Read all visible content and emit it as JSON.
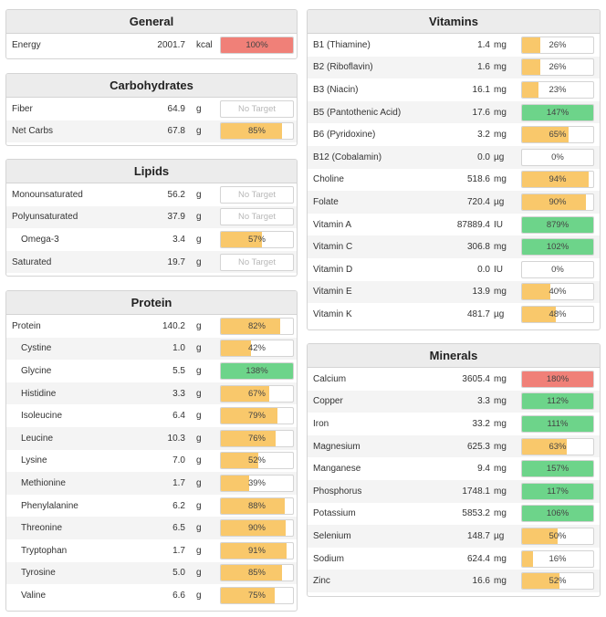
{
  "colors": {
    "below_target": "#f9c86b",
    "on_target": "#6dd48a",
    "over_target": "#f08078"
  },
  "general": {
    "title": "General",
    "rows": [
      {
        "name": "Energy",
        "amount": "2001.7",
        "unit": "kcal",
        "pct_label": "100%",
        "fill": 1.0,
        "status": "over"
      }
    ]
  },
  "carbohydrates": {
    "title": "Carbohydrates",
    "rows": [
      {
        "name": "Fiber",
        "amount": "64.9",
        "unit": "g",
        "pct_label": "No Target",
        "fill": 0,
        "status": "none"
      },
      {
        "name": "Net Carbs",
        "amount": "67.8",
        "unit": "g",
        "pct_label": "85%",
        "fill": 0.85,
        "status": "below"
      }
    ]
  },
  "lipids": {
    "title": "Lipids",
    "rows": [
      {
        "name": "Monounsaturated",
        "amount": "56.2",
        "unit": "g",
        "pct_label": "No Target",
        "fill": 0,
        "status": "none"
      },
      {
        "name": "Polyunsaturated",
        "amount": "37.9",
        "unit": "g",
        "pct_label": "No Target",
        "fill": 0,
        "status": "none"
      },
      {
        "name": "Omega-3",
        "amount": "3.4",
        "unit": "g",
        "pct_label": "57%",
        "fill": 0.57,
        "status": "below",
        "indent": true
      },
      {
        "name": "Saturated",
        "amount": "19.7",
        "unit": "g",
        "pct_label": "No Target",
        "fill": 0,
        "status": "none"
      }
    ]
  },
  "protein": {
    "title": "Protein",
    "rows": [
      {
        "name": "Protein",
        "amount": "140.2",
        "unit": "g",
        "pct_label": "82%",
        "fill": 0.82,
        "status": "below"
      },
      {
        "name": "Cystine",
        "amount": "1.0",
        "unit": "g",
        "pct_label": "42%",
        "fill": 0.42,
        "status": "below",
        "indent": true
      },
      {
        "name": "Glycine",
        "amount": "5.5",
        "unit": "g",
        "pct_label": "138%",
        "fill": 1.0,
        "status": "on",
        "indent": true
      },
      {
        "name": "Histidine",
        "amount": "3.3",
        "unit": "g",
        "pct_label": "67%",
        "fill": 0.67,
        "status": "below",
        "indent": true
      },
      {
        "name": "Isoleucine",
        "amount": "6.4",
        "unit": "g",
        "pct_label": "79%",
        "fill": 0.79,
        "status": "below",
        "indent": true
      },
      {
        "name": "Leucine",
        "amount": "10.3",
        "unit": "g",
        "pct_label": "76%",
        "fill": 0.76,
        "status": "below",
        "indent": true
      },
      {
        "name": "Lysine",
        "amount": "7.0",
        "unit": "g",
        "pct_label": "52%",
        "fill": 0.52,
        "status": "below",
        "indent": true
      },
      {
        "name": "Methionine",
        "amount": "1.7",
        "unit": "g",
        "pct_label": "39%",
        "fill": 0.39,
        "status": "below",
        "indent": true
      },
      {
        "name": "Phenylalanine",
        "amount": "6.2",
        "unit": "g",
        "pct_label": "88%",
        "fill": 0.88,
        "status": "below",
        "indent": true
      },
      {
        "name": "Threonine",
        "amount": "6.5",
        "unit": "g",
        "pct_label": "90%",
        "fill": 0.9,
        "status": "below",
        "indent": true
      },
      {
        "name": "Tryptophan",
        "amount": "1.7",
        "unit": "g",
        "pct_label": "91%",
        "fill": 0.91,
        "status": "below",
        "indent": true
      },
      {
        "name": "Tyrosine",
        "amount": "5.0",
        "unit": "g",
        "pct_label": "85%",
        "fill": 0.85,
        "status": "below",
        "indent": true
      },
      {
        "name": "Valine",
        "amount": "6.6",
        "unit": "g",
        "pct_label": "75%",
        "fill": 0.75,
        "status": "below",
        "indent": true
      }
    ]
  },
  "vitamins": {
    "title": "Vitamins",
    "rows": [
      {
        "name": "B1 (Thiamine)",
        "amount": "1.4",
        "unit": "mg",
        "pct_label": "26%",
        "fill": 0.26,
        "status": "below"
      },
      {
        "name": "B2 (Riboflavin)",
        "amount": "1.6",
        "unit": "mg",
        "pct_label": "26%",
        "fill": 0.26,
        "status": "below"
      },
      {
        "name": "B3 (Niacin)",
        "amount": "16.1",
        "unit": "mg",
        "pct_label": "23%",
        "fill": 0.23,
        "status": "below"
      },
      {
        "name": "B5 (Pantothenic Acid)",
        "amount": "17.6",
        "unit": "mg",
        "pct_label": "147%",
        "fill": 1.0,
        "status": "on"
      },
      {
        "name": "B6 (Pyridoxine)",
        "amount": "3.2",
        "unit": "mg",
        "pct_label": "65%",
        "fill": 0.65,
        "status": "below"
      },
      {
        "name": "B12 (Cobalamin)",
        "amount": "0.0",
        "unit": "µg",
        "pct_label": "0%",
        "fill": 0,
        "status": "below"
      },
      {
        "name": "Choline",
        "amount": "518.6",
        "unit": "mg",
        "pct_label": "94%",
        "fill": 0.94,
        "status": "below"
      },
      {
        "name": "Folate",
        "amount": "720.4",
        "unit": "µg",
        "pct_label": "90%",
        "fill": 0.9,
        "status": "below"
      },
      {
        "name": "Vitamin A",
        "amount": "87889.4",
        "unit": "IU",
        "pct_label": "879%",
        "fill": 1.0,
        "status": "on"
      },
      {
        "name": "Vitamin C",
        "amount": "306.8",
        "unit": "mg",
        "pct_label": "102%",
        "fill": 1.0,
        "status": "on"
      },
      {
        "name": "Vitamin D",
        "amount": "0.0",
        "unit": "IU",
        "pct_label": "0%",
        "fill": 0,
        "status": "below"
      },
      {
        "name": "Vitamin E",
        "amount": "13.9",
        "unit": "mg",
        "pct_label": "40%",
        "fill": 0.4,
        "status": "below"
      },
      {
        "name": "Vitamin K",
        "amount": "481.7",
        "unit": "µg",
        "pct_label": "48%",
        "fill": 0.48,
        "status": "below"
      }
    ]
  },
  "minerals": {
    "title": "Minerals",
    "rows": [
      {
        "name": "Calcium",
        "amount": "3605.4",
        "unit": "mg",
        "pct_label": "180%",
        "fill": 1.0,
        "status": "over"
      },
      {
        "name": "Copper",
        "amount": "3.3",
        "unit": "mg",
        "pct_label": "112%",
        "fill": 1.0,
        "status": "on"
      },
      {
        "name": "Iron",
        "amount": "33.2",
        "unit": "mg",
        "pct_label": "111%",
        "fill": 1.0,
        "status": "on"
      },
      {
        "name": "Magnesium",
        "amount": "625.3",
        "unit": "mg",
        "pct_label": "63%",
        "fill": 0.63,
        "status": "below"
      },
      {
        "name": "Manganese",
        "amount": "9.4",
        "unit": "mg",
        "pct_label": "157%",
        "fill": 1.0,
        "status": "on"
      },
      {
        "name": "Phosphorus",
        "amount": "1748.1",
        "unit": "mg",
        "pct_label": "117%",
        "fill": 1.0,
        "status": "on"
      },
      {
        "name": "Potassium",
        "amount": "5853.2",
        "unit": "mg",
        "pct_label": "106%",
        "fill": 1.0,
        "status": "on"
      },
      {
        "name": "Selenium",
        "amount": "148.7",
        "unit": "µg",
        "pct_label": "50%",
        "fill": 0.5,
        "status": "below"
      },
      {
        "name": "Sodium",
        "amount": "624.4",
        "unit": "mg",
        "pct_label": "16%",
        "fill": 0.16,
        "status": "below"
      },
      {
        "name": "Zinc",
        "amount": "16.6",
        "unit": "mg",
        "pct_label": "52%",
        "fill": 0.52,
        "status": "below"
      }
    ]
  }
}
